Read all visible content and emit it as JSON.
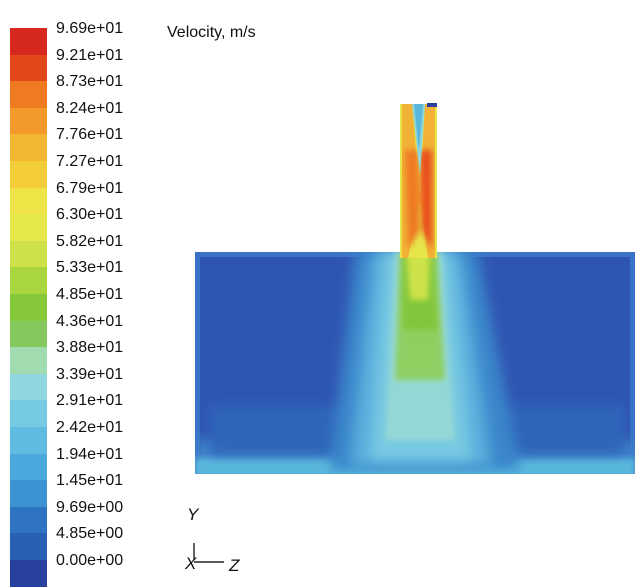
{
  "title": "Velocity, m/s",
  "legend": {
    "ticks": [
      "9.69e+01",
      "9.21e+01",
      "8.73e+01",
      "8.24e+01",
      "7.76e+01",
      "7.27e+01",
      "6.79e+01",
      "6.30e+01",
      "5.82e+01",
      "5.33e+01",
      "4.85e+01",
      "4.36e+01",
      "3.88e+01",
      "3.39e+01",
      "2.91e+01",
      "2.42e+01",
      "1.94e+01",
      "1.45e+01",
      "9.69e+00",
      "4.85e+00",
      "0.00e+00"
    ],
    "colors": [
      "#d7281f",
      "#e3481c",
      "#ee7a22",
      "#f19a2b",
      "#f3b632",
      "#f2cd38",
      "#eee447",
      "#e5e84b",
      "#cfe14a",
      "#a9d63e",
      "#85c93a",
      "#84c85e",
      "#a1dbb0",
      "#90d6de",
      "#76cae2",
      "#5fbbe2",
      "#4aa8dc",
      "#3c93d1",
      "#2f74c0",
      "#2a60b3",
      "#2840a0"
    ]
  },
  "axes": {
    "y": "Y",
    "x": "X",
    "z": "Z"
  }
}
